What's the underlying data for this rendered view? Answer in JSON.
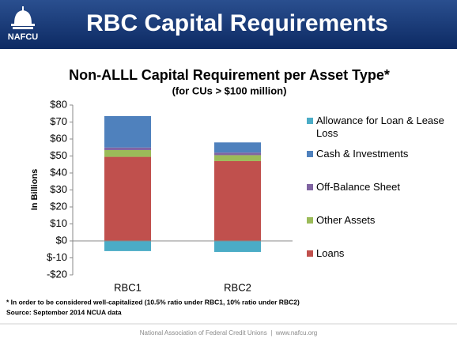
{
  "header": {
    "title": "RBC Capital Requirements",
    "logo": "NAFCU"
  },
  "chart_data": {
    "type": "stacked_bar",
    "title": "Non-ALLL Capital Requirement per Asset Type*",
    "subtitle": "(for CUs > $100 million)",
    "y_label": "In Billions",
    "categories": [
      "RBC1",
      "RBC2"
    ],
    "series": [
      {
        "name": "Loans",
        "color": "#c0504d",
        "values": [
          49.5,
          47
        ]
      },
      {
        "name": "Other Assets",
        "color": "#9bbb59",
        "values": [
          4,
          3.5
        ]
      },
      {
        "name": "Off-Balance Sheet",
        "color": "#8064a2",
        "values": [
          1.5,
          1.5
        ]
      },
      {
        "name": "Cash & Investments",
        "color": "#4f81bd",
        "values": [
          18.5,
          6
        ]
      },
      {
        "name": "Allowance for Loan & Lease Loss",
        "color": "#4bacc6",
        "values": [
          -6,
          -6.5
        ]
      }
    ],
    "ylim": [
      -20,
      80
    ],
    "yticks": [
      {
        "value": -20,
        "label": "-$20"
      },
      {
        "value": -10,
        "label": "$-10"
      },
      {
        "value": 0,
        "label": "$0"
      },
      {
        "value": 10,
        "label": "$10"
      },
      {
        "value": 20,
        "label": "$20"
      },
      {
        "value": 30,
        "label": "$30"
      },
      {
        "value": 40,
        "label": "$40"
      },
      {
        "value": 50,
        "label": "$50"
      },
      {
        "value": 60,
        "label": "$60"
      },
      {
        "value": 70,
        "label": "$70"
      },
      {
        "value": 80,
        "label": "$80"
      }
    ],
    "legend": "right",
    "grid": false
  },
  "notes": [
    "* In order to be considered well-capitalized (10.5% ratio under RBC1, 10% ratio under RBC2)",
    "Source: September 2014 NCUA data"
  ],
  "footer": "National Association of Federal Credit Unions  |  www.nafcu.org"
}
